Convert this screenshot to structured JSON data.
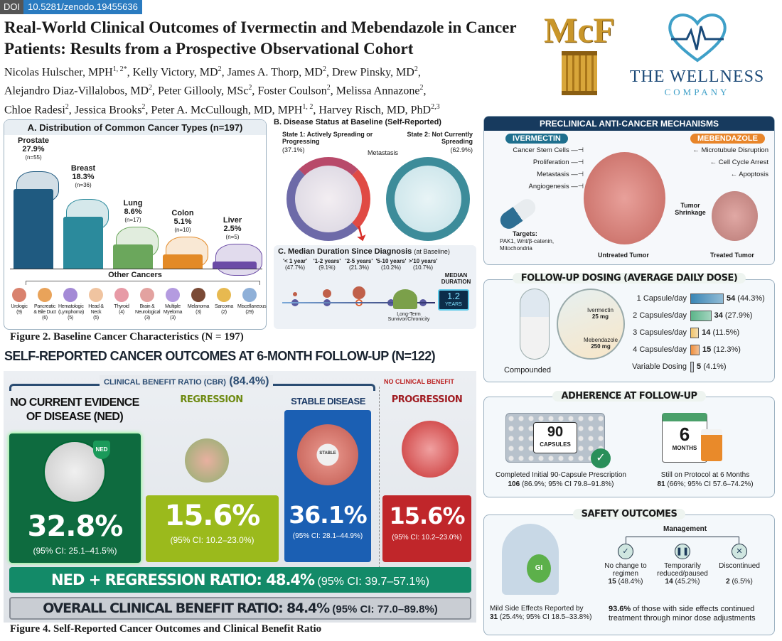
{
  "doi": {
    "label": "DOI",
    "value": "10.5281/zenodo.19455636"
  },
  "title": "Real-World Clinical Outcomes of Ivermectin and Mebendazole in Cancer Patients: Results from a Prospective Observational Cohort",
  "authors": [
    {
      "name": "Nicolas Hulscher, MPH",
      "sup": "1, 2*"
    },
    {
      "name": "Kelly Victory, MD",
      "sup": "2"
    },
    {
      "name": "James A. Thorp, MD",
      "sup": "2"
    },
    {
      "name": "Drew Pinsky, MD",
      "sup": "2"
    },
    {
      "name": "Alejandro Diaz-Villalobos, MD",
      "sup": "2"
    },
    {
      "name": "Peter Gillooly, MSc",
      "sup": "2"
    },
    {
      "name": "Foster Coulson",
      "sup": "2"
    },
    {
      "name": "Melissa Annazone",
      "sup": "2"
    },
    {
      "name": "Chloe Radesi",
      "sup": "2"
    },
    {
      "name": "Jessica Brooks",
      "sup": "2"
    },
    {
      "name": "Peter A. McCullough, MD, MPH",
      "sup": "1, 2"
    },
    {
      "name": "Harvey Risch, MD, PhD",
      "sup": "2,3"
    }
  ],
  "logos": {
    "mcf": "McF",
    "twc_line1": "THE WELLNESS",
    "twc_line2": "COMPANY"
  },
  "figure2": {
    "caption": "Figure 2. Baseline Cancer Characteristics (N = 197)",
    "panel_a": {
      "title": "A. Distribution of Common Cancer Types (n=197)",
      "bars": [
        {
          "label": "Prostate",
          "pct": "27.9%",
          "n": "(n=55)",
          "value": 27.9,
          "color": "#1f5a80"
        },
        {
          "label": "Breast",
          "pct": "18.3%",
          "n": "(n=36)",
          "value": 18.3,
          "color": "#2b8a9c"
        },
        {
          "label": "Lung",
          "pct": "8.6%",
          "n": "(n=17)",
          "value": 8.6,
          "color": "#6ba75c"
        },
        {
          "label": "Colon",
          "pct": "5.1%",
          "n": "(n=10)",
          "value": 5.1,
          "color": "#e38a27"
        },
        {
          "label": "Liver",
          "pct": "2.5%",
          "n": "(n=5)",
          "value": 2.5,
          "color": "#6b4ba6"
        }
      ],
      "other_title": "Other Cancers",
      "other": [
        {
          "label": "Urologic",
          "n": "(9)",
          "color": "#d9826e"
        },
        {
          "label": "Pancreatic & Bile Duct",
          "n": "(6)",
          "color": "#e9a35a"
        },
        {
          "label": "Hematologic (Lymphoma)",
          "n": "(5)",
          "color": "#a48ad6"
        },
        {
          "label": "Head & Neck",
          "n": "(5)",
          "color": "#f0c4a0"
        },
        {
          "label": "Thyroid",
          "n": "(4)",
          "color": "#e79aa6"
        },
        {
          "label": "Brain & Neurological",
          "n": "(3)",
          "color": "#e3a2a0"
        },
        {
          "label": "Multiple Myeloma",
          "n": "(3)",
          "color": "#b49be0"
        },
        {
          "label": "Melanoma",
          "n": "(3)",
          "color": "#7a4a36"
        },
        {
          "label": "Sarcoma",
          "n": "(2)",
          "color": "#e7b950"
        },
        {
          "label": "Miscellaneous",
          "n": "(29)",
          "color": "#8fb0d8"
        }
      ]
    },
    "panel_b": {
      "title": "B. Disease Status at Baseline (Self-Reported)",
      "state1_label": "State 1: Actively Spreading or Progressing",
      "state1_pct": "(37.1%)",
      "state2_label": "State 2: Not Currently Spreading",
      "state2_pct": "(62.9%)",
      "metastasis": "Metastasis"
    },
    "panel_c": {
      "title": "C. Median Duration Since Diagnosis",
      "subtitle": "(at Baseline)",
      "items": [
        {
          "label": "'< 1 year'",
          "pct": "(47.7%)"
        },
        {
          "label": "'1-2 years'",
          "pct": "(9.1%)"
        },
        {
          "label": "'2-5 years'",
          "pct": "(21.3%)"
        },
        {
          "label": "'5-10 years'",
          "pct": "(10.2%)"
        },
        {
          "label": ">'10 years'",
          "pct": "(10.7%)"
        }
      ],
      "median_label": "MEDIAN DURATION",
      "median_value": "1.2",
      "median_unit": "YEARS",
      "survivor": "Long-Term Survivor/Chronicity"
    }
  },
  "mechanisms": {
    "title": "PRECLINICAL ANTI-CANCER MECHANISMS",
    "ivermectin": "IVERMECTIN",
    "mebendazole": "MEBENDAZOLE",
    "iver_effects": [
      "Cancer Stem Cells",
      "Proliferation",
      "Metastasis",
      "Angiogenesis"
    ],
    "mebe_effects": [
      "Microtubule Disruption",
      "Cell Cycle Arrest",
      "Apoptosis"
    ],
    "targets_title": "Targets:",
    "targets": "PAK1, Wnt/β-catenin, Mitochondria",
    "shrinkage": "Tumor Shrinkage",
    "untreated": "Untreated Tumor",
    "treated": "Treated Tumor"
  },
  "dosing": {
    "title": "FOLLOW-UP DOSING (AVERAGE DAILY DOSE)",
    "compounded": "Compounded",
    "ivermectin": "Ivermectin",
    "ivermectin_dose": "25 mg",
    "mebendazole": "Mebendazole",
    "mebendazole_dose": "250 mg",
    "rows": [
      {
        "label": "1 Capsule/day",
        "n": "54",
        "pct": "(44.3%)",
        "value": 54,
        "color": "#3a86b5"
      },
      {
        "label": "2 Capsules/day",
        "n": "34",
        "pct": "(27.9%)",
        "value": 34,
        "color": "#5cb58a"
      },
      {
        "label": "3 Capsules/day",
        "n": "14",
        "pct": "(11.5%)",
        "value": 14,
        "color": "#f3c46a"
      },
      {
        "label": "4 Capsules/day",
        "n": "15",
        "pct": "(12.3%)",
        "value": 15,
        "color": "#ef8e3b"
      },
      {
        "label": "Variable Dosing",
        "n": "5",
        "pct": "(4.1%)",
        "value": 5,
        "color": "#b8c0c8"
      }
    ]
  },
  "adherence": {
    "title": "ADHERENCE AT FOLLOW-UP",
    "capsules_num": "90",
    "capsules_word": "CAPSULES",
    "months_num": "6",
    "months_word": "MONTHS",
    "completed_label": "Completed Initial 90-Capsule Prescription",
    "completed_n": "106",
    "completed_detail": "(86.9%; 95% CI 79.8–91.8%)",
    "protocol_label": "Still on Protocol at 6 Months",
    "protocol_n": "81",
    "protocol_detail": "(66%; 95% CI 57.6–74.2%)"
  },
  "safety": {
    "title": "SAFETY OUTCOMES",
    "gi": "GI",
    "management": "Management",
    "options": [
      {
        "label": "No change to regimen",
        "n": "15",
        "pct": "(48.4%)",
        "icon": "check-icon"
      },
      {
        "label": "Temporarily reduced/paused",
        "n": "14",
        "pct": "(45.2%)",
        "icon": "pause-icon"
      },
      {
        "label": "Discontinued",
        "n": "2",
        "pct": "(6.5%)",
        "icon": "x-icon"
      }
    ],
    "side_label": "Mild Side Effects Reported by",
    "side_n": "31",
    "side_detail": "(25.4%; 95% CI 18.5–33.8%)",
    "continued_pct": "93.6%",
    "continued_text": "of those with side effects continued treatment through minor dose adjustments"
  },
  "figure4": {
    "title": "SELF-REPORTED CANCER OUTCOMES AT 6-MONTH FOLLOW-UP (N=122)",
    "cbr_label": "CLINICAL BENEFIT RATIO (CBR)",
    "cbr_value": "(84.4%)",
    "no_benefit": "NO CLINICAL BENEFIT",
    "ned_badge": "NED",
    "stable_badge": "STABLE",
    "cards": [
      {
        "label": "NO CURRENT EVIDENCE OF DISEASE (NED)",
        "value": "32.8%",
        "ci": "(95% CI: 25.1–41.5%)",
        "color": "#0e6b3f"
      },
      {
        "label": "REGRESSION",
        "value": "15.6%",
        "ci": "(95% CI: 10.2–23.0%)",
        "color": "#9bba1c"
      },
      {
        "label": "STABLE DISEASE",
        "value": "36.1%",
        "ci": "(95% CI: 28.1–44.9%)",
        "color": "#1b5fb3"
      },
      {
        "label": "PROGRESSION",
        "value": "15.6%",
        "ci": "(95% CI: 10.2–23.0%)",
        "color": "#c0262a"
      }
    ],
    "ned_reg_label": "NED + REGRESSION RATIO: 48.4%",
    "ned_reg_ci": "(95% CI: 39.7–57.1%)",
    "overall_label": "OVERALL CLINICAL BENEFIT RATIO: 84.4%",
    "overall_ci": "(95% CI: 77.0–89.8%)",
    "caption": "Figure 4. Self-Reported Cancer Outcomes and Clinical Benefit Ratio"
  }
}
